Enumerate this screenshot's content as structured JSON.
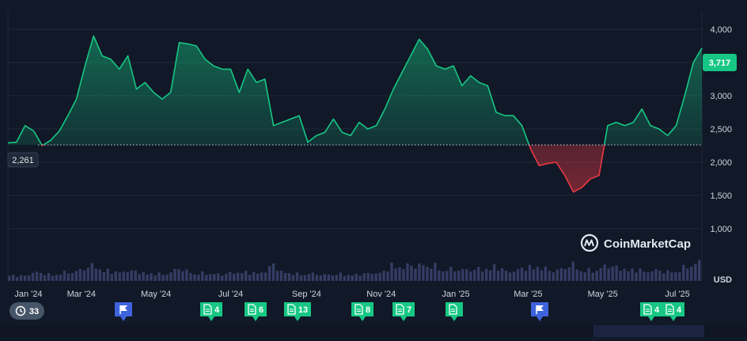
{
  "chart_data": {
    "type": "area",
    "x_ticks": [
      "Jan '24",
      "Mar '24",
      "May '24",
      "Jul '24",
      "Sep '24",
      "Nov '24",
      "Jan '25",
      "Mar '25",
      "May '25",
      "Jul '25"
    ],
    "y_ticks": [
      "4,000",
      "3,500",
      "3,000",
      "2,500",
      "2,000",
      "1,500",
      "1,000"
    ],
    "ylim": [
      700,
      4200
    ],
    "ylabel": "USD",
    "baseline": {
      "value": 2261,
      "label": "2,261"
    },
    "last_price": {
      "value": 3717,
      "label": "3,717"
    },
    "colors": {
      "up": "#16c784",
      "down": "#ea3943",
      "background": "#111827",
      "grid": "#1f2a3a",
      "volume": "#3b4470"
    },
    "x": [
      "2024-01-01",
      "2024-01-08",
      "2024-01-15",
      "2024-01-22",
      "2024-01-29",
      "2024-02-05",
      "2024-02-12",
      "2024-02-19",
      "2024-02-26",
      "2024-03-04",
      "2024-03-11",
      "2024-03-18",
      "2024-03-25",
      "2024-04-01",
      "2024-04-08",
      "2024-04-15",
      "2024-04-22",
      "2024-04-29",
      "2024-05-06",
      "2024-05-13",
      "2024-05-20",
      "2024-05-27",
      "2024-06-03",
      "2024-06-10",
      "2024-06-17",
      "2024-06-24",
      "2024-07-01",
      "2024-07-08",
      "2024-07-15",
      "2024-07-22",
      "2024-07-29",
      "2024-08-05",
      "2024-08-12",
      "2024-08-19",
      "2024-08-26",
      "2024-09-02",
      "2024-09-09",
      "2024-09-16",
      "2024-09-23",
      "2024-09-30",
      "2024-10-07",
      "2024-10-14",
      "2024-10-21",
      "2024-10-28",
      "2024-11-04",
      "2024-11-11",
      "2024-11-18",
      "2024-11-25",
      "2024-12-02",
      "2024-12-09",
      "2024-12-16",
      "2024-12-23",
      "2024-12-30",
      "2025-01-06",
      "2025-01-13",
      "2025-01-20",
      "2025-01-27",
      "2025-02-03",
      "2025-02-10",
      "2025-02-17",
      "2025-02-24",
      "2025-03-03",
      "2025-03-10",
      "2025-03-17",
      "2025-03-24",
      "2025-03-31",
      "2025-04-07",
      "2025-04-14",
      "2025-04-21",
      "2025-04-28",
      "2025-05-05",
      "2025-05-12",
      "2025-05-19",
      "2025-05-26",
      "2025-06-02",
      "2025-06-09",
      "2025-06-16",
      "2025-06-23",
      "2025-06-30",
      "2025-07-07",
      "2025-07-14",
      "2025-07-21"
    ],
    "series": [
      {
        "values": [
          2290,
          2300,
          2550,
          2470,
          2250,
          2330,
          2470,
          2700,
          2950,
          3450,
          3900,
          3600,
          3550,
          3400,
          3600,
          3100,
          3200,
          3050,
          2950,
          3050,
          3800,
          3780,
          3750,
          3550,
          3450,
          3400,
          3400,
          3050,
          3400,
          3200,
          3250,
          2550,
          2600,
          2650,
          2700,
          2300,
          2400,
          2450,
          2650,
          2450,
          2400,
          2600,
          2500,
          2550,
          2800,
          3100,
          3350,
          3600,
          3850,
          3700,
          3450,
          3400,
          3450,
          3150,
          3300,
          3200,
          3150,
          2750,
          2700,
          2700,
          2550,
          2200,
          1950,
          1980,
          2000,
          1800,
          1550,
          1620,
          1750,
          1800,
          2550,
          2600,
          2550,
          2600,
          2800,
          2550,
          2500,
          2400,
          2550,
          3000,
          3500,
          3717
        ]
      }
    ],
    "volume": [
      0.22,
      0.15,
      0.18,
      0.3,
      0.24,
      0.2,
      0.26,
      0.28,
      0.32,
      0.45,
      0.5,
      0.38,
      0.3,
      0.28,
      0.35,
      0.3,
      0.25,
      0.24,
      0.22,
      0.3,
      0.42,
      0.3,
      0.26,
      0.25,
      0.24,
      0.22,
      0.26,
      0.3,
      0.28,
      0.26,
      0.3,
      0.55,
      0.3,
      0.25,
      0.22,
      0.26,
      0.22,
      0.2,
      0.24,
      0.22,
      0.2,
      0.22,
      0.24,
      0.26,
      0.3,
      0.55,
      0.45,
      0.5,
      0.55,
      0.5,
      0.48,
      0.4,
      0.38,
      0.35,
      0.4,
      0.38,
      0.4,
      0.5,
      0.35,
      0.3,
      0.4,
      0.45,
      0.5,
      0.38,
      0.35,
      0.4,
      0.55,
      0.4,
      0.35,
      0.33,
      0.55,
      0.45,
      0.4,
      0.38,
      0.35,
      0.32,
      0.35,
      0.3,
      0.32,
      0.4,
      0.55,
      0.62
    ]
  },
  "events": {
    "history_count": "33",
    "markers": [
      {
        "kind": "flag",
        "label": ""
      },
      {
        "kind": "doc",
        "label": "4"
      },
      {
        "kind": "doc",
        "label": "6"
      },
      {
        "kind": "doc",
        "label": "13"
      },
      {
        "kind": "doc",
        "label": "8"
      },
      {
        "kind": "doc",
        "label": "7"
      },
      {
        "kind": "doc",
        "label": ""
      },
      {
        "kind": "flag",
        "label": ""
      },
      {
        "kind": "doc",
        "label": "4"
      },
      {
        "kind": "doc",
        "label": "4"
      }
    ]
  },
  "brand": {
    "name": "CoinMarketCap"
  }
}
